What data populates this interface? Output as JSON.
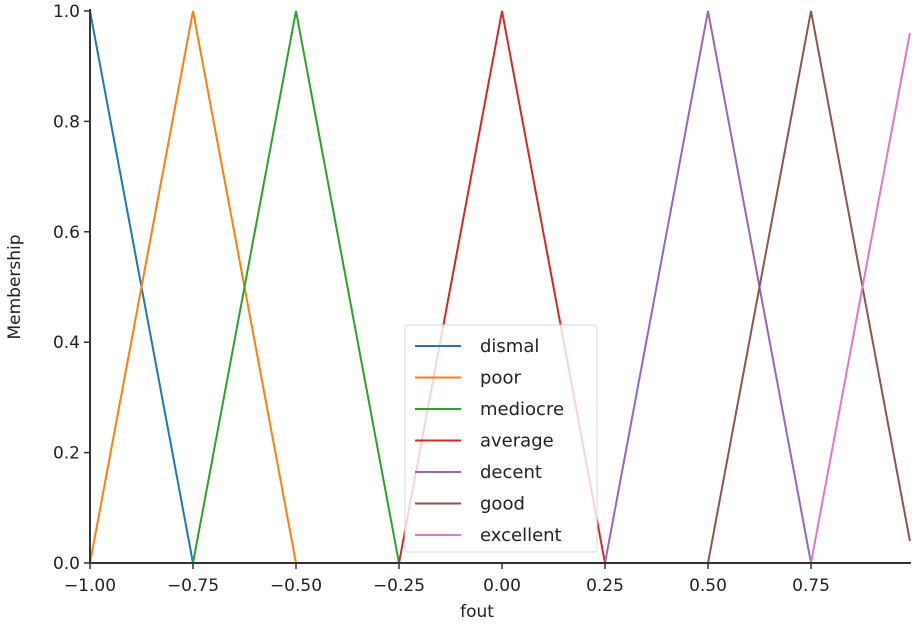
{
  "chart_data": {
    "type": "line",
    "title": "",
    "xlabel": "fout",
    "ylabel": "Membership",
    "xlim": [
      -1.0,
      0.99
    ],
    "ylim": [
      0.0,
      1.0
    ],
    "grid": false,
    "legend_position": "lower center",
    "x_ticks": [
      -1.0,
      -0.75,
      -0.5,
      -0.25,
      0.0,
      0.25,
      0.5,
      0.75
    ],
    "x_tick_labels": [
      "−1.00",
      "−0.75",
      "−0.50",
      "−0.25",
      "0.00",
      "0.25",
      "0.50",
      "0.75"
    ],
    "y_ticks": [
      0.0,
      0.2,
      0.4,
      0.6,
      0.8,
      1.0
    ],
    "y_tick_labels": [
      "0.0",
      "0.2",
      "0.4",
      "0.6",
      "0.8",
      "1.0"
    ],
    "series": [
      {
        "name": "dismal",
        "color": "#1f77b4",
        "x": [
          -1.0,
          -1.0,
          -0.75,
          0.99
        ],
        "y": [
          0,
          1.0,
          0,
          0
        ]
      },
      {
        "name": "poor",
        "color": "#ff7f0e",
        "x": [
          -1.0,
          -0.75,
          -0.5,
          0.99
        ],
        "y": [
          0,
          1.0,
          0,
          0
        ]
      },
      {
        "name": "mediocre",
        "color": "#2ca02c",
        "x": [
          -1.0,
          -0.75,
          -0.5,
          -0.25,
          0.99
        ],
        "y": [
          0,
          0,
          1.0,
          0,
          0
        ]
      },
      {
        "name": "average",
        "color": "#d62728",
        "x": [
          -1.0,
          -0.25,
          0.0,
          0.25,
          0.99
        ],
        "y": [
          0,
          0,
          1.0,
          0,
          0
        ]
      },
      {
        "name": "decent",
        "color": "#9467bd",
        "x": [
          -1.0,
          0.25,
          0.5,
          0.75,
          0.99
        ],
        "y": [
          0,
          0,
          1.0,
          0,
          0
        ]
      },
      {
        "name": "good",
        "color": "#8c564b",
        "x": [
          -1.0,
          0.5,
          0.75,
          0.99
        ],
        "y": [
          0,
          0,
          1.0,
          0.04
        ]
      },
      {
        "name": "excellent",
        "color": "#e377c2",
        "x": [
          -1.0,
          0.75,
          0.99
        ],
        "y": [
          0,
          0,
          0.96
        ]
      }
    ]
  }
}
